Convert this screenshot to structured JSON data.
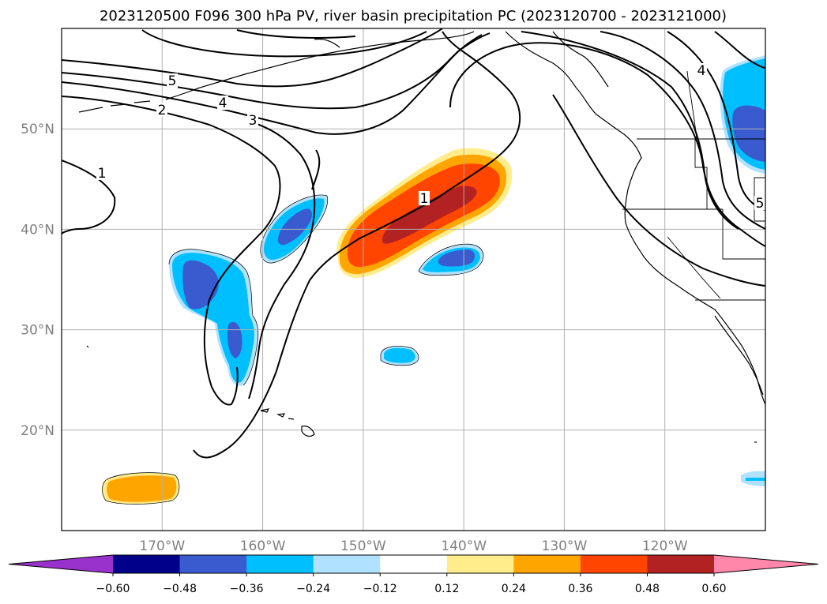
{
  "title": "2023120500 F096 300 hPa PV, river basin precipitation PC (2023120700 - 2023121000)",
  "map": {
    "lon_range": [
      -180,
      -110
    ],
    "lat_range": [
      10,
      60
    ],
    "lon_ticks": [
      {
        "value": -170,
        "label": "170°W"
      },
      {
        "value": -160,
        "label": "160°W"
      },
      {
        "value": -150,
        "label": "150°W"
      },
      {
        "value": -140,
        "label": "140°W"
      },
      {
        "value": -130,
        "label": "130°W"
      },
      {
        "value": -120,
        "label": "120°W"
      }
    ],
    "lat_ticks": [
      {
        "value": 20,
        "label": "20°N"
      },
      {
        "value": 30,
        "label": "30°N"
      },
      {
        "value": 40,
        "label": "40°N"
      },
      {
        "value": 50,
        "label": "50°N"
      }
    ],
    "grid": true
  },
  "pv_contour_labels": [
    "1",
    "2",
    "3",
    "4",
    "5"
  ],
  "colorbar": {
    "extend": "both",
    "ticks": [
      "−0.60",
      "−0.48",
      "−0.36",
      "−0.24",
      "−0.12",
      "0.12",
      "0.24",
      "0.36",
      "0.48",
      "0.60"
    ],
    "colors": [
      "#9932cc",
      "#00008b",
      "#3a5bcf",
      "#00bfff",
      "#b0e2ff",
      "#ffffff",
      "#ffec8b",
      "#ffa500",
      "#ff4500",
      "#b22222",
      "#ff88aa"
    ]
  }
}
